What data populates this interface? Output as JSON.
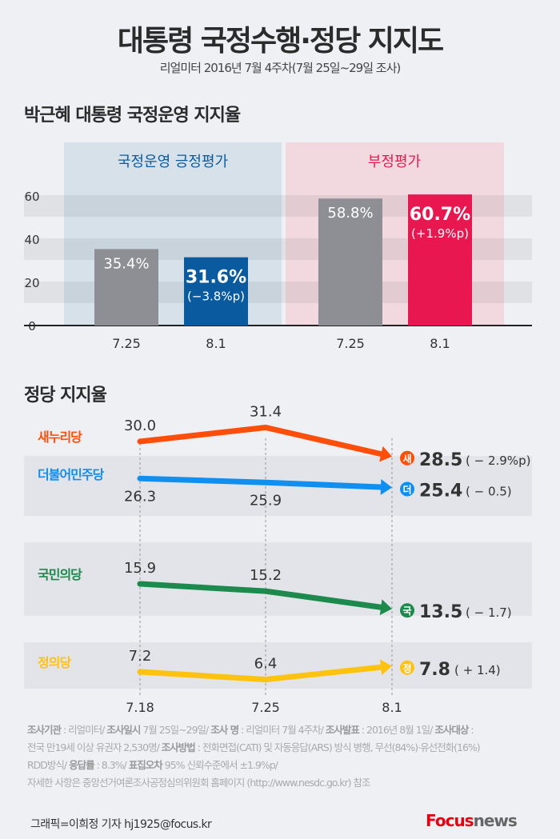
{
  "title": "대통령 국정수행·정당 지지도",
  "subtitle": "리얼미터 2016년 7월 4주차(7월 25일~29일 조사)",
  "colors": {
    "positive_panel": "#d6e1ea",
    "negative_panel": "#f1d9df",
    "gray_bar": "#8e8e95",
    "blue_bar": "#0a5aa0",
    "red_bar": "#e8174f",
    "saenuri": "#ff4e0a",
    "minju": "#0f8ff0",
    "kookmin": "#1b8a4c",
    "justice": "#ffc20e"
  },
  "chart_data": [
    {
      "type": "bar",
      "title": "박근혜 대통령 국정운영 지지율",
      "ylim": [
        0,
        60
      ],
      "yticks": [
        0,
        20,
        40,
        60
      ],
      "grid": "bands",
      "groups": [
        {
          "label": "국정운영 긍정평가",
          "categories": [
            "7.25",
            "8.1"
          ],
          "values": [
            35.4,
            31.6
          ],
          "labels": [
            "35.4%",
            "31.6%"
          ],
          "change": "(−3.8%p)"
        },
        {
          "label": "부정평가",
          "categories": [
            "7.25",
            "8.1"
          ],
          "values": [
            58.8,
            60.7
          ],
          "labels": [
            "58.8%",
            "60.7%"
          ],
          "change": "(+1.9%p)"
        }
      ]
    },
    {
      "type": "line",
      "title": "정당 지지율",
      "x": [
        "7.18",
        "7.25",
        "8.1"
      ],
      "series": [
        {
          "name": "새누리당",
          "badge": "새",
          "values": [
            30.0,
            31.4,
            28.5
          ],
          "labels": [
            "30.0",
            "31.4",
            "28.5"
          ],
          "change": "( − 2.9%p)"
        },
        {
          "name": "더불어민주당",
          "badge": "더",
          "values": [
            26.3,
            25.9,
            25.4
          ],
          "labels": [
            "26.3",
            "25.9",
            "25.4"
          ],
          "change": "( − 0.5)"
        },
        {
          "name": "국민의당",
          "badge": "국",
          "values": [
            15.9,
            15.2,
            13.5
          ],
          "labels": [
            "15.9",
            "15.2",
            "13.5"
          ],
          "change": "( − 1.7)"
        },
        {
          "name": "정의당",
          "badge": "정",
          "values": [
            7.2,
            6.4,
            7.8
          ],
          "labels": [
            "7.2",
            "6.4",
            "7.8"
          ],
          "change": "( + 1.4)"
        }
      ]
    }
  ],
  "footer": {
    "lines": [
      [
        [
          "조사기관",
          "b"
        ],
        [
          " : 리얼미터/ ",
          ""
        ],
        [
          "조사일시",
          "b"
        ],
        [
          " 7월 25일~29일/ ",
          ""
        ],
        [
          "조사 명",
          "b"
        ],
        [
          " : 리얼미터 7월 4주차/ ",
          ""
        ],
        [
          "조사발표",
          "b"
        ],
        [
          " : 2016년 8월 1일/ ",
          ""
        ],
        [
          "조사대상",
          "b"
        ],
        [
          " :",
          ""
        ]
      ],
      [
        [
          "전국 만19세 이상 유권자 2,530명/ ",
          ""
        ],
        [
          "조사방법",
          "b"
        ],
        [
          " : 전화면접(CATI) 및 자동응답(ARS) 방식 병행, 무선(84%)·유선전화(16%)",
          ""
        ]
      ],
      [
        [
          "RDD방식/ ",
          ""
        ],
        [
          "응답률",
          "b"
        ],
        [
          " : 8.3%/ ",
          ""
        ],
        [
          "표집오차",
          "b"
        ],
        [
          "  95% 신뢰수준에서 ±1.9%p/",
          ""
        ]
      ],
      [
        [
          "자세한 사항은 중앙선거여론조사공정심의위원회 홈페이지 (http://www.nesdc.go.kr) 참조",
          ""
        ]
      ]
    ],
    "credit": "그래픽=이희정 기자 hj1925@focus.kr",
    "logo": "Focus news"
  }
}
